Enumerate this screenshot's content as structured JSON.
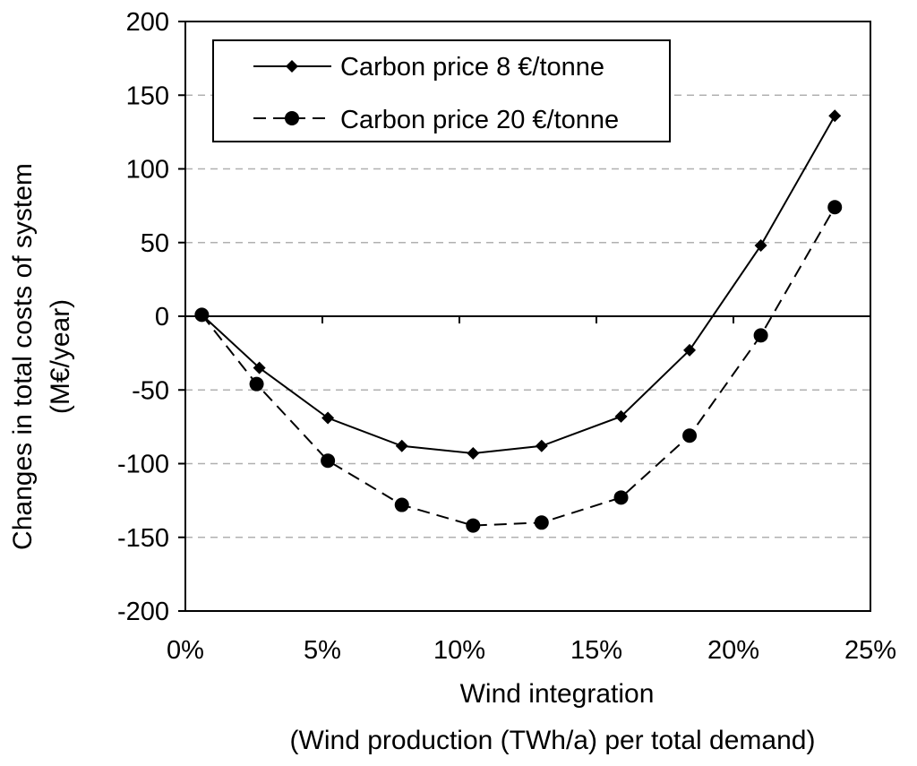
{
  "chart_data": {
    "type": "line",
    "xlabel": "Wind integration",
    "xlabel_line2": "(Wind production (TWh/a) per total demand)",
    "ylabel": "Changes in total costs of system",
    "ylabel_line2": "(M€/year)",
    "xlim": [
      0,
      25
    ],
    "ylim": [
      -200,
      200
    ],
    "x_ticks": [
      0,
      5,
      10,
      15,
      20,
      25
    ],
    "x_tick_labels": [
      "0%",
      "5%",
      "10%",
      "15%",
      "20%",
      "25%"
    ],
    "y_ticks": [
      200,
      150,
      100,
      50,
      0,
      -50,
      -100,
      -150,
      -200
    ],
    "y_tick_labels": [
      "200",
      "150",
      "100",
      "50",
      "0",
      "-50",
      "-100",
      "-150",
      "-200"
    ],
    "grid": "horizontal dashed",
    "legend_position": "top-left",
    "series": [
      {
        "name": "Carbon price 8 €/tonne",
        "marker": "diamond",
        "line_style": "solid",
        "x": [
          0.6,
          2.7,
          5.2,
          7.9,
          10.5,
          13.0,
          15.9,
          18.4,
          21.0,
          23.7
        ],
        "y": [
          1,
          -35,
          -69,
          -88,
          -93,
          -88,
          -68,
          -23,
          48,
          136
        ]
      },
      {
        "name": "Carbon price 20 €/tonne",
        "marker": "circle",
        "line_style": "dashed",
        "x": [
          0.6,
          2.6,
          5.2,
          7.9,
          10.5,
          13.0,
          15.9,
          18.4,
          21.0,
          23.7
        ],
        "y": [
          1,
          -46,
          -98,
          -128,
          -142,
          -140,
          -123,
          -81,
          -13,
          74
        ]
      }
    ]
  }
}
